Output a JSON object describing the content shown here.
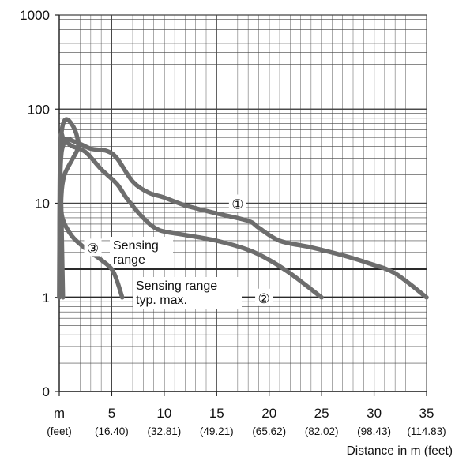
{
  "chart_data": {
    "type": "line",
    "xlabel": "Distance in m (feet)",
    "ylabel": "",
    "y_scale": "log",
    "xlim": [
      0,
      35
    ],
    "y_ticks": [
      {
        "value": 0.1,
        "label": "0"
      },
      {
        "value": 1,
        "label": "1"
      },
      {
        "value": 10,
        "label": "10"
      },
      {
        "value": 100,
        "label": "100"
      },
      {
        "value": 1000,
        "label": "1000"
      }
    ],
    "x_ticks": [
      {
        "value": 0,
        "label": "m",
        "sub": "(feet)"
      },
      {
        "value": 5,
        "label": "5",
        "sub": "(16.40)"
      },
      {
        "value": 10,
        "label": "10",
        "sub": "(32.81)"
      },
      {
        "value": 15,
        "label": "15",
        "sub": "(49.21)"
      },
      {
        "value": 20,
        "label": "20",
        "sub": "(65.62)"
      },
      {
        "value": 25,
        "label": "25",
        "sub": "(82.02)"
      },
      {
        "value": 30,
        "label": "30",
        "sub": "(98.43)"
      },
      {
        "value": 35,
        "label": "35",
        "sub": "(114.83)"
      }
    ],
    "grid": true,
    "series": [
      {
        "marker": "①",
        "points": [
          [
            0,
            1
          ],
          [
            0.1,
            20
          ],
          [
            0.5,
            45
          ],
          [
            1.5,
            45
          ],
          [
            3,
            38
          ],
          [
            4.5,
            36
          ],
          [
            5.5,
            30
          ],
          [
            7,
            17
          ],
          [
            8.5,
            13
          ],
          [
            10,
            11.5
          ],
          [
            12,
            9.5
          ],
          [
            15,
            7.8
          ],
          [
            18,
            6.5
          ],
          [
            19,
            5.5
          ],
          [
            21,
            4
          ],
          [
            24,
            3.4
          ],
          [
            27,
            2.8
          ],
          [
            29.5,
            2.3
          ],
          [
            32,
            1.8
          ],
          [
            35,
            1
          ]
        ]
      },
      {
        "marker": "②",
        "points": [
          [
            0,
            1
          ],
          [
            0.1,
            40
          ],
          [
            0.5,
            45
          ],
          [
            1.3,
            40
          ],
          [
            2.5,
            35
          ],
          [
            4,
            23
          ],
          [
            5.5,
            16
          ],
          [
            6.5,
            11
          ],
          [
            8,
            7
          ],
          [
            9.5,
            5.2
          ],
          [
            12,
            4.6
          ],
          [
            15,
            4
          ],
          [
            18,
            3.2
          ],
          [
            20,
            2.5
          ],
          [
            22,
            1.8
          ],
          [
            25,
            1
          ]
        ]
      },
      {
        "marker": "③",
        "points": [
          [
            0.35,
            1
          ],
          [
            0.2,
            8
          ],
          [
            0.1,
            25
          ],
          [
            0.25,
            60
          ],
          [
            0.7,
            78
          ],
          [
            1.5,
            60
          ],
          [
            1.8,
            40
          ],
          [
            1.3,
            30
          ],
          [
            0.5,
            20
          ],
          [
            0.2,
            12
          ],
          [
            0.3,
            7
          ],
          [
            1.2,
            4.5
          ],
          [
            2.5,
            3.3
          ],
          [
            4,
            2.5
          ],
          [
            5,
            2
          ],
          [
            5.5,
            1.5
          ],
          [
            6,
            1
          ]
        ]
      }
    ],
    "reference_lines": [
      {
        "label": "Sensing range",
        "y": 2
      },
      {
        "label": "Sensing range typ. max.",
        "y": 1
      }
    ],
    "annotations": {
      "sensing_range_1": "Sensing",
      "sensing_range_2": "range",
      "sensing_max_1": "Sensing range",
      "sensing_max_2": "typ. max."
    },
    "colors": {
      "curve": "#6d6d6d",
      "reference": "#2a2a2a",
      "grid": "#444444"
    }
  }
}
